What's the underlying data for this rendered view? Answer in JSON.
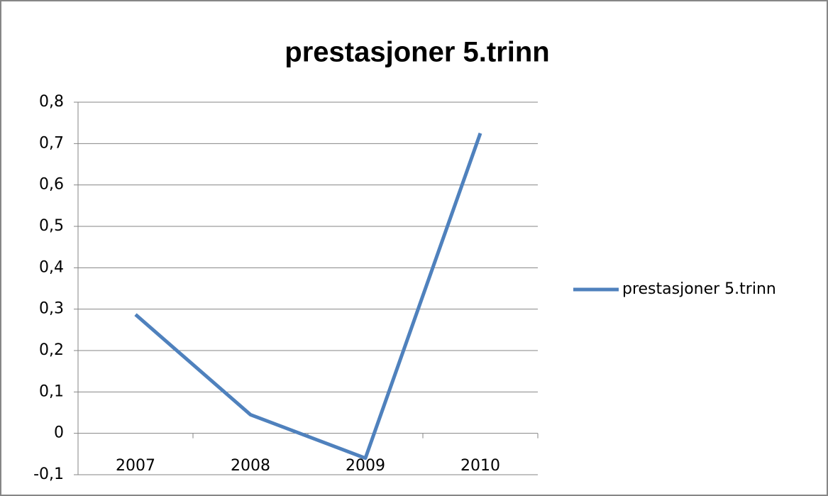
{
  "chart_data": {
    "type": "line",
    "title": "prestasjoner 5.trinn",
    "categories": [
      "2007",
      "2008",
      "2009",
      "2010"
    ],
    "series": [
      {
        "name": "prestasjoner 5.trinn",
        "color": "#4f81bd",
        "values": [
          0.287,
          0.045,
          -0.06,
          0.725
        ]
      }
    ],
    "ylim": [
      -0.1,
      0.8
    ],
    "yticks": [
      {
        "value": -0.1,
        "label": "-0,1"
      },
      0,
      {
        "value": 0.1,
        "label": "0,1"
      },
      {
        "value": 0.2,
        "label": "0,2"
      },
      {
        "value": 0.3,
        "label": "0,3"
      },
      {
        "value": 0.4,
        "label": "0,4"
      },
      {
        "value": 0.5,
        "label": "0,5"
      },
      {
        "value": 0.6,
        "label": "0,6"
      },
      {
        "value": 0.7,
        "label": "0,7"
      },
      {
        "value": 0.8,
        "label": "0,8"
      }
    ],
    "grid": true,
    "legend": "right"
  }
}
